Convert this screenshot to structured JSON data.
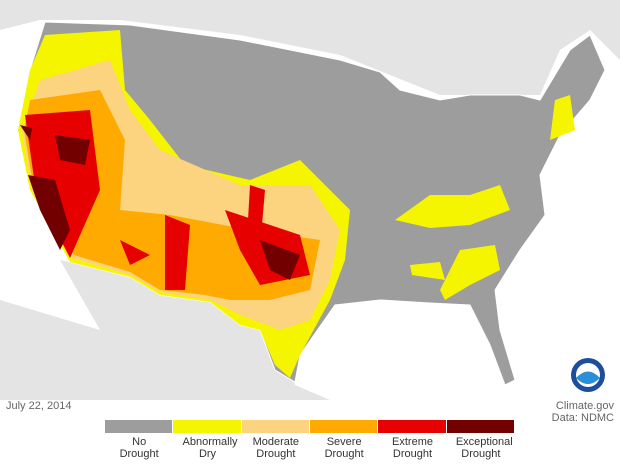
{
  "date": "July 22, 2014",
  "source": "Climate.gov",
  "data_credit": "Data: NDMC",
  "legend": [
    {
      "label": "No Drought",
      "color": "#9d9d9d"
    },
    {
      "label": "Abnormally Dry",
      "color": "#f5f500"
    },
    {
      "label": "Moderate Drought",
      "color": "#fcd37f"
    },
    {
      "label": "Severe Drought",
      "color": "#ffaa00"
    },
    {
      "label": "Extreme Drought",
      "color": "#e60000"
    },
    {
      "label": "Exceptional Drought",
      "color": "#730000"
    }
  ]
}
